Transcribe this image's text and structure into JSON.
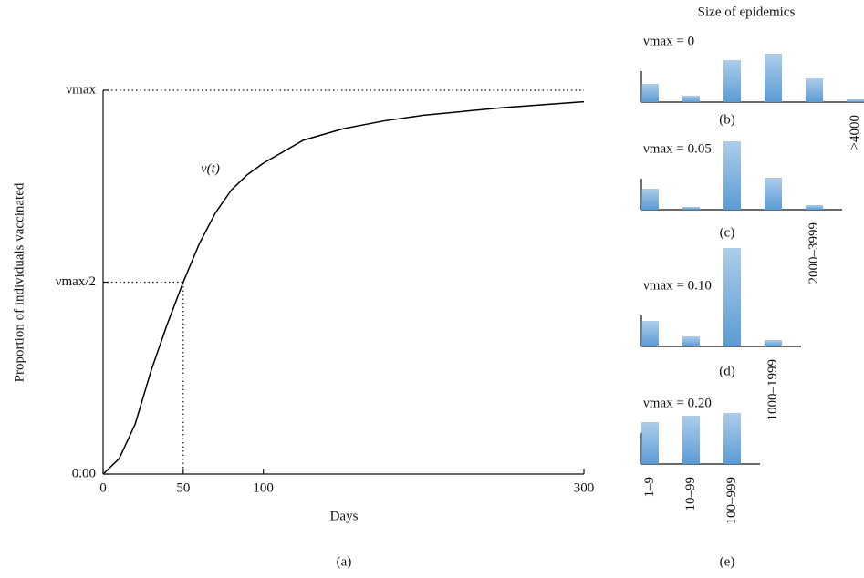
{
  "chart_data": [
    {
      "type": "line",
      "panel": "(a)",
      "x_label": "Days",
      "y_label": "Proportion of individuals vaccinated",
      "annotation": "ν(t)",
      "x": [
        0,
        10,
        20,
        30,
        40,
        50,
        60,
        70,
        80,
        90,
        100,
        125,
        150,
        175,
        200,
        250,
        300
      ],
      "values": [
        0,
        0.04,
        0.13,
        0.27,
        0.39,
        0.5,
        0.6,
        0.68,
        0.74,
        0.78,
        0.81,
        0.87,
        0.9,
        0.92,
        0.935,
        0.955,
        0.97
      ],
      "color": "#000000",
      "xlim": [
        0,
        300
      ],
      "ylim": [
        0,
        1
      ],
      "xticks": [
        0,
        50,
        100,
        300
      ],
      "yticks": [
        {
          "value": 0,
          "label": "0.00"
        },
        {
          "value": 0.5,
          "label": "νmax/2"
        },
        {
          "value": 1,
          "label": "νmax"
        }
      ]
    },
    {
      "type": "bar",
      "title": "Size of epidemics",
      "label": "νmax = 0",
      "panel": "(b)",
      "color": "#5b9bd5",
      "ylim": [
        0,
        110
      ],
      "categories": [
        null,
        null,
        null,
        null,
        null,
        ">4000"
      ],
      "values": [
        20,
        7,
        46,
        53,
        26,
        3
      ]
    },
    {
      "type": "bar",
      "label": "νmax = 0.05",
      "panel": "(c)",
      "color": "#5b9bd5",
      "ylim": [
        0,
        110
      ],
      "categories": [
        null,
        null,
        null,
        null,
        "2000–3999"
      ],
      "values": [
        23,
        3,
        75,
        35,
        5
      ]
    },
    {
      "type": "bar",
      "label": "νmax = 0.10",
      "panel": "(d)",
      "color": "#5b9bd5",
      "ylim": [
        0,
        110
      ],
      "categories": [
        null,
        null,
        null,
        "1000–1999"
      ],
      "values": [
        28,
        11,
        108,
        7
      ]
    },
    {
      "type": "bar",
      "label": "νmax = 0.20",
      "panel": "(e)",
      "color": "#5b9bd5",
      "ylim": [
        0,
        110
      ],
      "categories": [
        "1–9",
        "10–99",
        "100–999"
      ],
      "values": [
        46,
        53,
        56
      ]
    }
  ]
}
